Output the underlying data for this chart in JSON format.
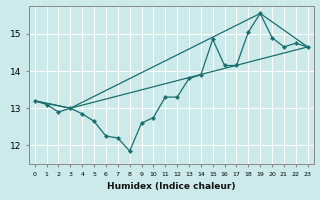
{
  "xlabel": "Humidex (Indice chaleur)",
  "bg_color": "#cceaea",
  "grid_color": "#ffffff",
  "line_color": "#1a6e6e",
  "xlim": [
    -0.5,
    23.5
  ],
  "ylim": [
    11.5,
    15.75
  ],
  "xticks": [
    0,
    1,
    2,
    3,
    4,
    5,
    6,
    7,
    8,
    9,
    10,
    11,
    12,
    13,
    14,
    15,
    16,
    17,
    18,
    19,
    20,
    21,
    22,
    23
  ],
  "yticks": [
    12,
    13,
    14,
    15
  ],
  "line1_x": [
    0,
    1,
    2,
    3,
    4,
    5,
    6,
    7,
    8,
    9,
    10,
    11,
    12,
    13,
    14,
    15,
    16,
    17,
    18,
    19,
    20,
    21,
    22,
    23
  ],
  "line1_y": [
    13.2,
    13.1,
    12.9,
    13.0,
    12.85,
    12.65,
    12.25,
    12.2,
    11.85,
    12.6,
    12.75,
    13.3,
    13.3,
    13.8,
    13.9,
    14.85,
    14.15,
    14.15,
    15.05,
    15.55,
    14.9,
    14.65,
    14.75,
    14.65
  ],
  "line2_x": [
    0,
    3,
    23
  ],
  "line2_y": [
    13.2,
    13.0,
    14.65
  ],
  "line3_x": [
    0,
    3,
    19,
    23
  ],
  "line3_y": [
    13.2,
    13.0,
    15.55,
    14.65
  ]
}
